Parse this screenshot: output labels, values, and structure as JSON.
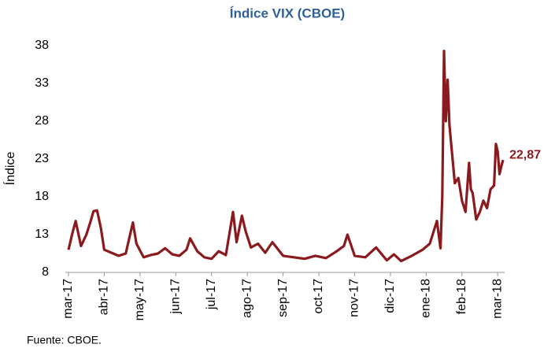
{
  "chart_data": {
    "type": "line",
    "title": "Índice VIX (CBOE)",
    "y_label": "Índice",
    "source": "Fuente: CBOE.",
    "x": [
      0,
      0.1,
      0.2,
      0.35,
      0.5,
      0.6,
      0.7,
      0.8,
      0.9,
      1.0,
      1.2,
      1.4,
      1.6,
      1.8,
      1.9,
      2.1,
      2.3,
      2.5,
      2.7,
      2.9,
      3.1,
      3.3,
      3.4,
      3.6,
      3.8,
      4.0,
      4.2,
      4.4,
      4.6,
      4.7,
      4.85,
      4.95,
      5.1,
      5.3,
      5.5,
      5.7,
      6.0,
      6.3,
      6.6,
      6.9,
      7.2,
      7.5,
      7.7,
      7.8,
      8.0,
      8.3,
      8.6,
      8.9,
      9.1,
      9.3,
      9.6,
      9.9,
      10.1,
      10.3,
      10.4,
      10.45,
      10.5,
      10.55,
      10.6,
      10.65,
      10.7,
      10.8,
      10.9,
      11.0,
      11.1,
      11.2,
      11.25,
      11.3,
      11.4,
      11.5,
      11.6,
      11.7,
      11.8,
      11.9,
      11.95,
      12.0,
      12.05,
      12.1,
      12.15
    ],
    "series": [
      {
        "name": "VIX",
        "color": "#8b1a1f",
        "values": [
          11.0,
          13.0,
          14.8,
          11.5,
          13.0,
          14.5,
          16.1,
          16.2,
          14.0,
          11.0,
          10.6,
          10.2,
          10.5,
          14.6,
          11.8,
          10.0,
          10.3,
          10.5,
          11.2,
          10.4,
          10.2,
          11.0,
          12.5,
          10.8,
          10.0,
          9.8,
          10.8,
          10.3,
          16.0,
          12.0,
          15.5,
          13.5,
          11.3,
          11.8,
          10.6,
          12.0,
          10.2,
          10.0,
          9.8,
          10.2,
          9.9,
          10.8,
          11.5,
          13.0,
          10.2,
          10.0,
          11.3,
          9.6,
          10.4,
          9.5,
          10.2,
          11.0,
          11.8,
          14.8,
          11.2,
          18.0,
          37.3,
          28.0,
          33.5,
          27.5,
          25.0,
          19.8,
          20.5,
          17.5,
          16.0,
          22.5,
          19.0,
          18.5,
          15.0,
          16.0,
          17.5,
          16.5,
          19.0,
          19.5,
          25.0,
          24.0,
          21.0,
          22.0,
          22.87
        ],
        "value_labels": [
          null,
          null,
          null,
          null,
          null,
          null,
          null,
          null,
          null,
          null,
          null,
          null,
          null,
          null,
          null,
          null,
          null,
          null,
          null,
          null,
          null,
          null,
          null,
          null,
          null,
          null,
          null,
          null,
          null,
          null,
          null,
          null,
          null,
          null,
          null,
          null,
          null,
          null,
          null,
          null,
          null,
          null,
          null,
          null,
          null,
          null,
          null,
          null,
          null,
          null,
          null,
          null,
          null,
          null,
          null,
          null,
          null,
          null,
          null,
          null,
          null,
          null,
          null,
          null,
          null,
          null,
          null,
          null,
          null,
          null,
          null,
          null,
          null,
          null,
          null,
          null,
          null,
          null,
          "22,87"
        ]
      }
    ],
    "xlim": [
      0,
      12.15
    ],
    "xticks": [
      {
        "value": 0,
        "label": "mar-17"
      },
      {
        "value": 1,
        "label": "abr-17"
      },
      {
        "value": 2,
        "label": "may-17"
      },
      {
        "value": 3,
        "label": "jun-17"
      },
      {
        "value": 4,
        "label": "jul-17"
      },
      {
        "value": 5,
        "label": "ago-17"
      },
      {
        "value": 6,
        "label": "sep-17"
      },
      {
        "value": 7,
        "label": "oct-17"
      },
      {
        "value": 8,
        "label": "nov-17"
      },
      {
        "value": 9,
        "label": "dic-17"
      },
      {
        "value": 10,
        "label": "ene-18"
      },
      {
        "value": 11,
        "label": "feb-18"
      },
      {
        "value": 12,
        "label": "mar-18"
      }
    ],
    "ylim": [
      8,
      38
    ],
    "yticks": [
      8,
      13,
      18,
      23,
      28,
      33,
      38
    ],
    "grid": false
  }
}
